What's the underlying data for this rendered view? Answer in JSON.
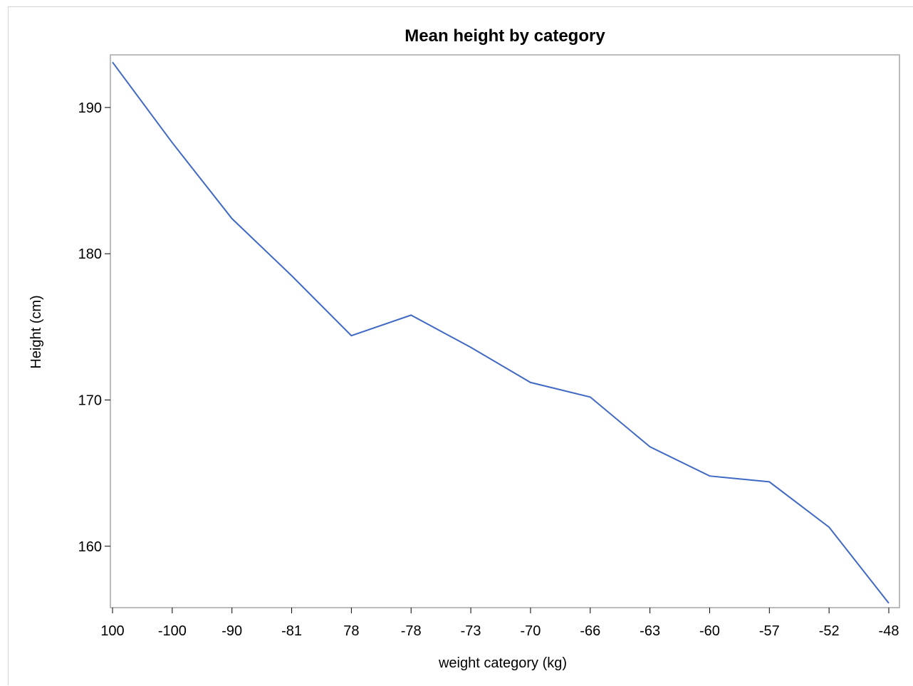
{
  "chart_data": {
    "type": "line",
    "title": "Mean height by category",
    "xlabel": "weight category (kg)",
    "ylabel": "Height (cm)",
    "categories": [
      "100",
      "-100",
      "-90",
      "-81",
      "78",
      "-78",
      "-73",
      "-70",
      "-66",
      "-63",
      "-60",
      "-57",
      "-52",
      "-48"
    ],
    "series": [
      {
        "values": [
          193.1,
          187.6,
          182.4,
          178.5,
          174.4,
          175.8,
          173.6,
          171.2,
          170.2,
          166.8,
          164.8,
          164.4,
          161.3,
          156.1
        ]
      }
    ],
    "ylim": [
      155.8,
      193.6
    ],
    "yticks": [
      160,
      170,
      180,
      190
    ],
    "grid": false,
    "legend": "none",
    "line_color": "#4069c4",
    "frame_color": "#a6a6a6"
  }
}
